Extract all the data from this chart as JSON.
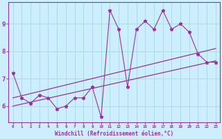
{
  "xlabel": "Windchill (Refroidissement éolien,°C)",
  "ylabel": "",
  "background_color": "#cceeff",
  "line_color": "#993399",
  "grid_color": "#aadddd",
  "x_data": [
    0,
    1,
    2,
    3,
    4,
    5,
    6,
    7,
    8,
    9,
    10,
    11,
    12,
    13,
    14,
    15,
    16,
    17,
    18,
    19,
    20,
    21,
    22,
    23
  ],
  "y_data": [
    7.2,
    6.3,
    6.1,
    6.4,
    6.3,
    5.9,
    6.0,
    6.3,
    6.3,
    6.7,
    5.6,
    9.5,
    8.8,
    6.7,
    8.8,
    9.1,
    8.8,
    9.5,
    8.8,
    9.0,
    8.7,
    7.9,
    7.6,
    7.6
  ],
  "trend1_x": [
    0,
    23
  ],
  "trend1_y": [
    6.3,
    8.1
  ],
  "trend2_x": [
    0,
    23
  ],
  "trend2_y": [
    6.0,
    7.65
  ],
  "ylim": [
    5.4,
    9.8
  ],
  "xlim": [
    -0.5,
    23.5
  ],
  "yticks": [
    6,
    7,
    8,
    9
  ],
  "xticks": [
    0,
    1,
    2,
    3,
    4,
    5,
    6,
    7,
    8,
    9,
    10,
    11,
    12,
    13,
    14,
    15,
    16,
    17,
    18,
    19,
    20,
    21,
    22,
    23
  ]
}
